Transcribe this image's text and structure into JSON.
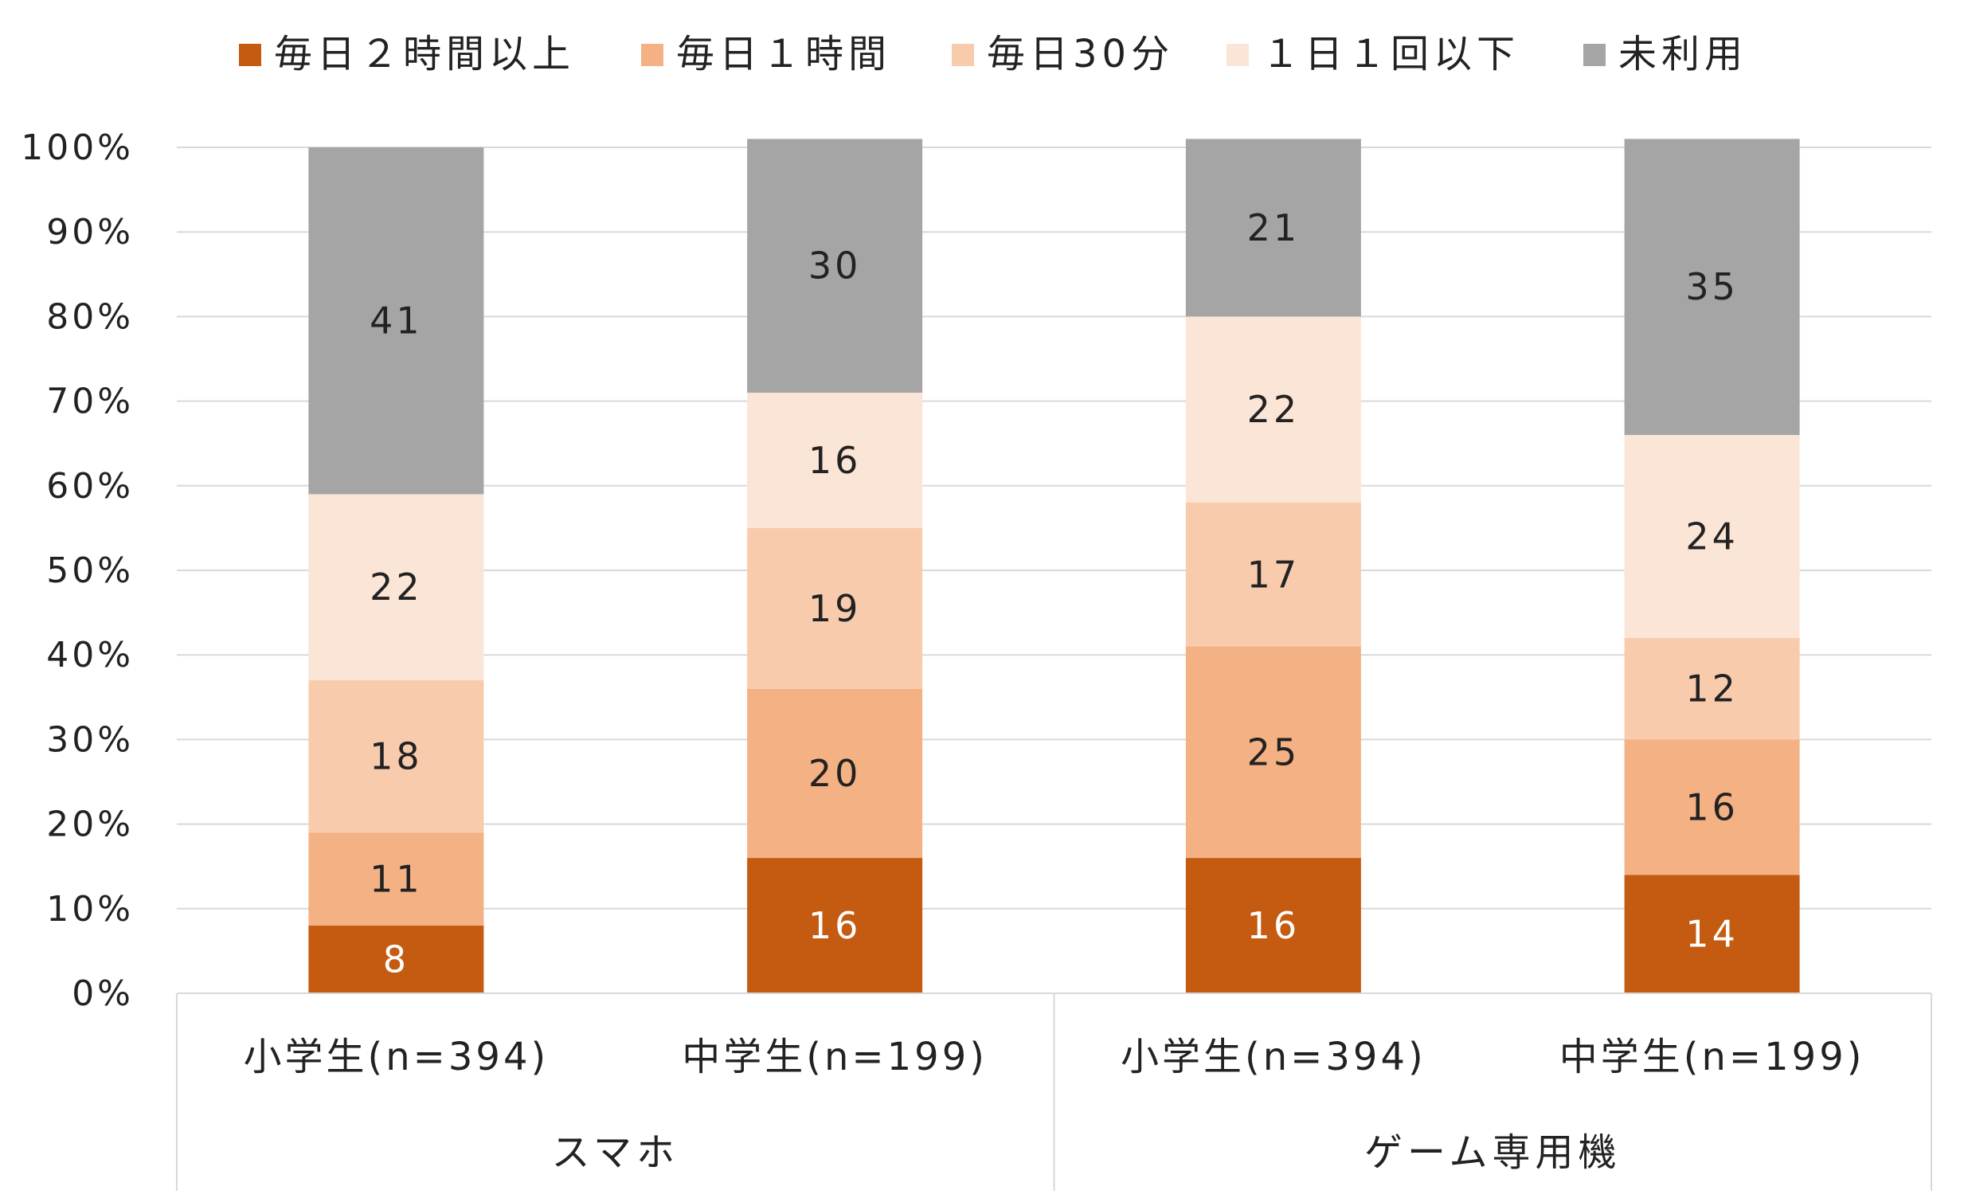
{
  "chart_data": {
    "type": "bar",
    "stacked": true,
    "categories": [
      "小学生(n=394)",
      "中学生(n=199)",
      "小学生(n=394)",
      "中学生(n=199)"
    ],
    "groups": [
      {
        "label": "スマホ",
        "categories": [
          0,
          1
        ]
      },
      {
        "label": "ゲーム専用機",
        "categories": [
          2,
          3
        ]
      }
    ],
    "series": [
      {
        "name": "毎日２時間以上",
        "color": "#c55a11",
        "label_color": "#ffffff",
        "values": [
          8,
          16,
          16,
          14
        ]
      },
      {
        "name": "毎日１時間",
        "color": "#f4b183",
        "label_color": "#222222",
        "values": [
          11,
          20,
          25,
          16
        ]
      },
      {
        "name": "毎日30分",
        "color": "#f8cbad",
        "label_color": "#222222",
        "values": [
          18,
          19,
          17,
          12
        ]
      },
      {
        "name": "１日１回以下",
        "color": "#fbe5d6",
        "label_color": "#222222",
        "values": [
          22,
          16,
          22,
          24
        ]
      },
      {
        "name": "未利用",
        "color": "#a5a5a5",
        "label_color": "#222222",
        "values": [
          41,
          30,
          21,
          35
        ]
      }
    ],
    "ylim": [
      0,
      100
    ],
    "yticks": [
      "0%",
      "10%",
      "20%",
      "30%",
      "40%",
      "50%",
      "60%",
      "70%",
      "80%",
      "90%",
      "100%"
    ],
    "grid": true,
    "legend_position": "top"
  }
}
